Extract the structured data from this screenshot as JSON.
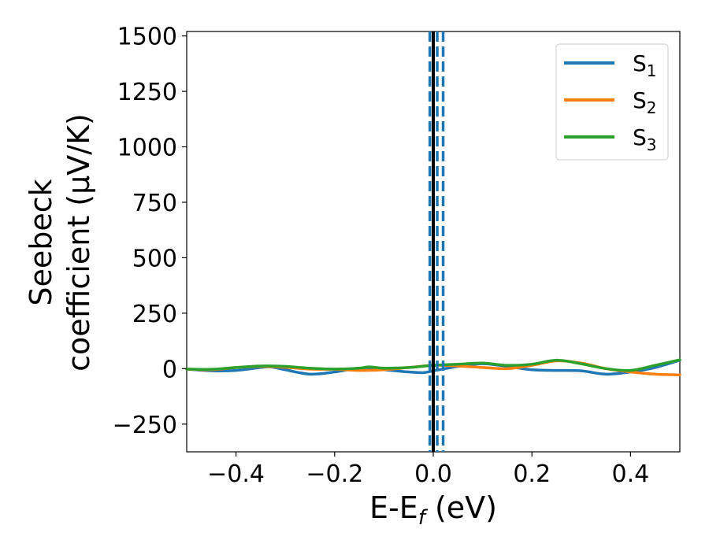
{
  "chart_data": {
    "type": "line",
    "xlabel": "E-E_f (eV)",
    "xlabel_main": "E-E",
    "xlabel_sub": "f",
    "xlabel_unit": " (eV)",
    "ylabel_line1": "Seebeck",
    "ylabel_line2": "coefficient  (μV/K)",
    "xlim": [
      -0.5,
      0.5
    ],
    "ylim": [
      -375,
      1520
    ],
    "xticks": [
      -0.4,
      -0.2,
      0.0,
      0.2,
      0.4
    ],
    "xtick_labels": [
      "−0.4",
      "−0.2",
      "0.0",
      "0.2",
      "0.4"
    ],
    "yticks": [
      -250,
      0,
      250,
      500,
      750,
      1000,
      1250,
      1500
    ],
    "ytick_labels": [
      "−250",
      "0",
      "250",
      "500",
      "750",
      "1000",
      "1250",
      "1500"
    ],
    "grid": false,
    "legend_position": "top-right",
    "vertical_lines": [
      {
        "x": 0.0,
        "style": "solid",
        "color": "#000000"
      },
      {
        "x": -0.007,
        "style": "dashed",
        "color": "#1f77b4"
      },
      {
        "x": 0.008,
        "style": "dashed",
        "color": "#1f77b4"
      },
      {
        "x": 0.02,
        "style": "dashed",
        "color": "#1f77b4"
      }
    ],
    "series": [
      {
        "name": "S_1",
        "label_main": "S",
        "label_sub": "1",
        "color": "#1f77b4",
        "x": [
          -0.5,
          -0.45,
          -0.4,
          -0.35,
          -0.33,
          -0.3,
          -0.25,
          -0.2,
          -0.15,
          -0.1,
          -0.05,
          -0.02,
          0.0,
          0.05,
          0.1,
          0.15,
          0.2,
          0.25,
          0.3,
          0.35,
          0.4,
          0.45,
          0.5
        ],
        "values": [
          -2,
          -10,
          -8,
          5,
          8,
          -5,
          -25,
          -15,
          2,
          -5,
          -15,
          -18,
          -10,
          10,
          22,
          10,
          -5,
          -8,
          -10,
          -25,
          -15,
          5,
          38
        ]
      },
      {
        "name": "S_2",
        "label_main": "S",
        "label_sub": "2",
        "color": "#ff7f0e",
        "x": [
          -0.5,
          -0.45,
          -0.4,
          -0.35,
          -0.3,
          -0.25,
          -0.2,
          -0.15,
          -0.1,
          -0.05,
          0.0,
          0.05,
          0.1,
          0.15,
          0.2,
          0.25,
          0.3,
          0.35,
          0.4,
          0.45,
          0.5
        ],
        "values": [
          -2,
          -5,
          5,
          10,
          6,
          -2,
          -3,
          -8,
          -5,
          5,
          15,
          12,
          5,
          0,
          15,
          35,
          25,
          0,
          -15,
          -25,
          -28
        ]
      },
      {
        "name": "S_3",
        "label_main": "S",
        "label_sub": "3",
        "color": "#2ca02c",
        "x": [
          -0.5,
          -0.45,
          -0.4,
          -0.35,
          -0.3,
          -0.25,
          -0.2,
          -0.15,
          -0.13,
          -0.1,
          -0.05,
          0.0,
          0.05,
          0.1,
          0.15,
          0.2,
          0.25,
          0.3,
          0.35,
          0.4,
          0.45,
          0.5
        ],
        "values": [
          -2,
          -3,
          5,
          12,
          10,
          2,
          -2,
          2,
          8,
          2,
          5,
          15,
          20,
          25,
          15,
          20,
          38,
          22,
          0,
          -8,
          15,
          40
        ]
      }
    ]
  }
}
